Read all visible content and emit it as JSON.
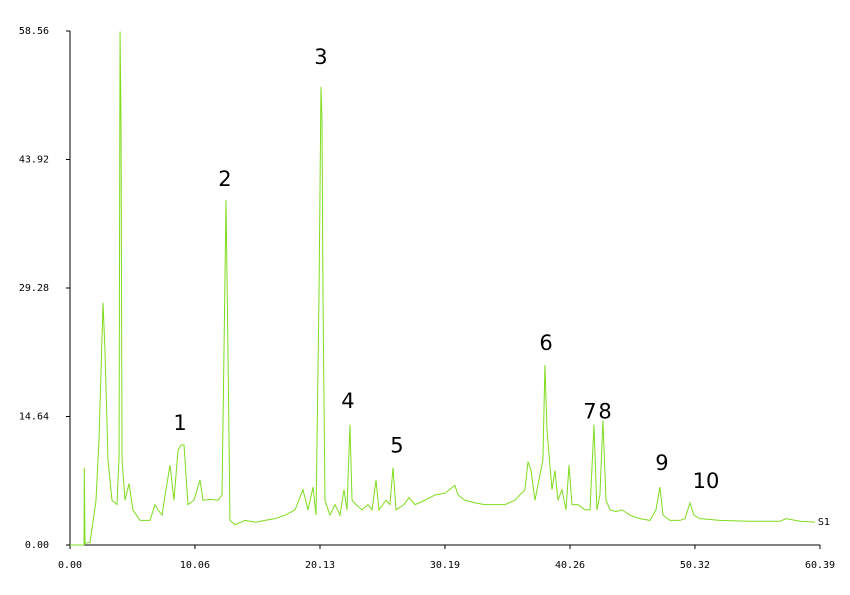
{
  "chart_data": {
    "type": "line",
    "x": [
      0.0,
      1.13,
      1.15,
      1.21,
      1.61,
      2.09,
      2.33,
      2.66,
      2.82,
      3.06,
      3.38,
      3.78,
      3.95,
      4.03,
      4.11,
      4.19,
      4.43,
      4.75,
      5.07,
      5.64,
      6.2,
      6.44,
      6.84,
      7.09,
      7.41,
      7.73,
      8.05,
      8.37,
      8.7,
      8.94,
      9.18,
      9.5,
      9.98,
      10.47,
      10.71,
      11.27,
      11.92,
      12.24,
      12.4,
      12.56,
      12.72,
      12.88,
      13.29,
      14.09,
      14.9,
      15.7,
      16.51,
      17.31,
      18.12,
      18.76,
      19.16,
      19.57,
      19.81,
      20.05,
      20.21,
      20.29,
      20.37,
      20.53,
      20.93,
      21.34,
      21.74,
      22.06,
      22.3,
      22.54,
      22.71,
      23.03,
      23.51,
      23.99,
      24.32,
      24.64,
      24.88,
      25.44,
      25.76,
      26.01,
      26.25,
      26.89,
      27.29,
      27.78,
      28.58,
      29.39,
      30.19,
      30.99,
      31.24,
      31.8,
      32.61,
      33.41,
      34.22,
      35.02,
      35.83,
      36.63,
      36.88,
      37.12,
      37.44,
      37.84,
      38.08,
      38.24,
      38.41,
      38.57,
      38.81,
      39.05,
      39.29,
      39.61,
      39.94,
      40.18,
      40.42,
      40.9,
      41.47,
      41.87,
      42.19,
      42.43,
      42.67,
      42.91,
      43.16,
      43.48,
      43.96,
      44.44,
      45.09,
      45.89,
      46.7,
      47.18,
      47.5,
      47.75,
      48.31,
      49.11,
      49.52,
      49.92,
      50.24,
      50.72,
      52.33,
      54.75,
      57.17,
      57.65,
      58.78,
      59.98
    ],
    "series": [
      {
        "name": "S1",
        "color": "#7fdc1e",
        "values": [
          0,
          0,
          8.8,
          0.2,
          0.3,
          5.0,
          11.8,
          27.6,
          22.0,
          9.7,
          5.1,
          4.6,
          10.0,
          58.5,
          47.7,
          9.7,
          5.1,
          7.0,
          4.0,
          2.8,
          2.8,
          2.8,
          4.6,
          4.0,
          3.4,
          6.3,
          9.1,
          5.1,
          10.8,
          11.4,
          11.4,
          4.6,
          5.1,
          7.4,
          5.1,
          5.2,
          5.1,
          5.7,
          22.2,
          39.3,
          22.2,
          2.8,
          2.3,
          2.8,
          2.6,
          2.8,
          3.0,
          3.4,
          4.0,
          6.3,
          4.0,
          6.6,
          3.4,
          28.5,
          52.2,
          48.4,
          28.5,
          5.1,
          3.4,
          4.6,
          3.4,
          6.3,
          4.0,
          13.7,
          5.1,
          4.6,
          4.0,
          4.6,
          4.0,
          7.4,
          4.0,
          5.1,
          4.6,
          8.8,
          4.0,
          4.6,
          5.4,
          4.6,
          5.1,
          5.7,
          5.9,
          6.8,
          5.7,
          5.1,
          4.8,
          4.6,
          4.6,
          4.6,
          5.1,
          6.3,
          9.5,
          8.5,
          5.1,
          8.0,
          9.7,
          20.5,
          13.1,
          10.3,
          6.3,
          8.5,
          5.1,
          6.3,
          4.0,
          9.1,
          4.6,
          4.6,
          4.0,
          4.0,
          13.7,
          4.0,
          5.7,
          14.2,
          5.1,
          4.0,
          3.8,
          4.0,
          3.4,
          3.0,
          2.8,
          4.0,
          6.6,
          3.4,
          2.8,
          2.8,
          3.0,
          4.8,
          3.4,
          3.0,
          2.8,
          2.7,
          2.7,
          3.0,
          2.7,
          2.6
        ]
      }
    ],
    "xlim": [
      0,
      60.39
    ],
    "ylim": [
      0,
      58.56
    ],
    "xticks": [
      {
        "value": 0,
        "label": "0.00"
      },
      10.06,
      20.13,
      30.19,
      40.26,
      50.32,
      60.39
    ],
    "yticks": [
      {
        "value": 0,
        "label": "0.00"
      },
      14.64,
      29.28,
      43.92,
      58.56
    ],
    "annotations": [
      {
        "text": "1",
        "x": 8.86,
        "y": 13.8
      },
      {
        "text": "2",
        "x": 12.48,
        "y": 41.6
      },
      {
        "text": "3",
        "x": 20.21,
        "y": 55.5
      },
      {
        "text": "4",
        "x": 22.38,
        "y": 16.3
      },
      {
        "text": "5",
        "x": 26.33,
        "y": 11.2
      },
      {
        "text": "6",
        "x": 38.33,
        "y": 22.9
      },
      {
        "text": "7",
        "x": 41.87,
        "y": 15.1
      },
      {
        "text": "8",
        "x": 43.08,
        "y": 15.1
      },
      {
        "text": "9",
        "x": 47.66,
        "y": 9.2
      },
      {
        "text": "10",
        "x": 51.21,
        "y": 7.2
      }
    ]
  }
}
